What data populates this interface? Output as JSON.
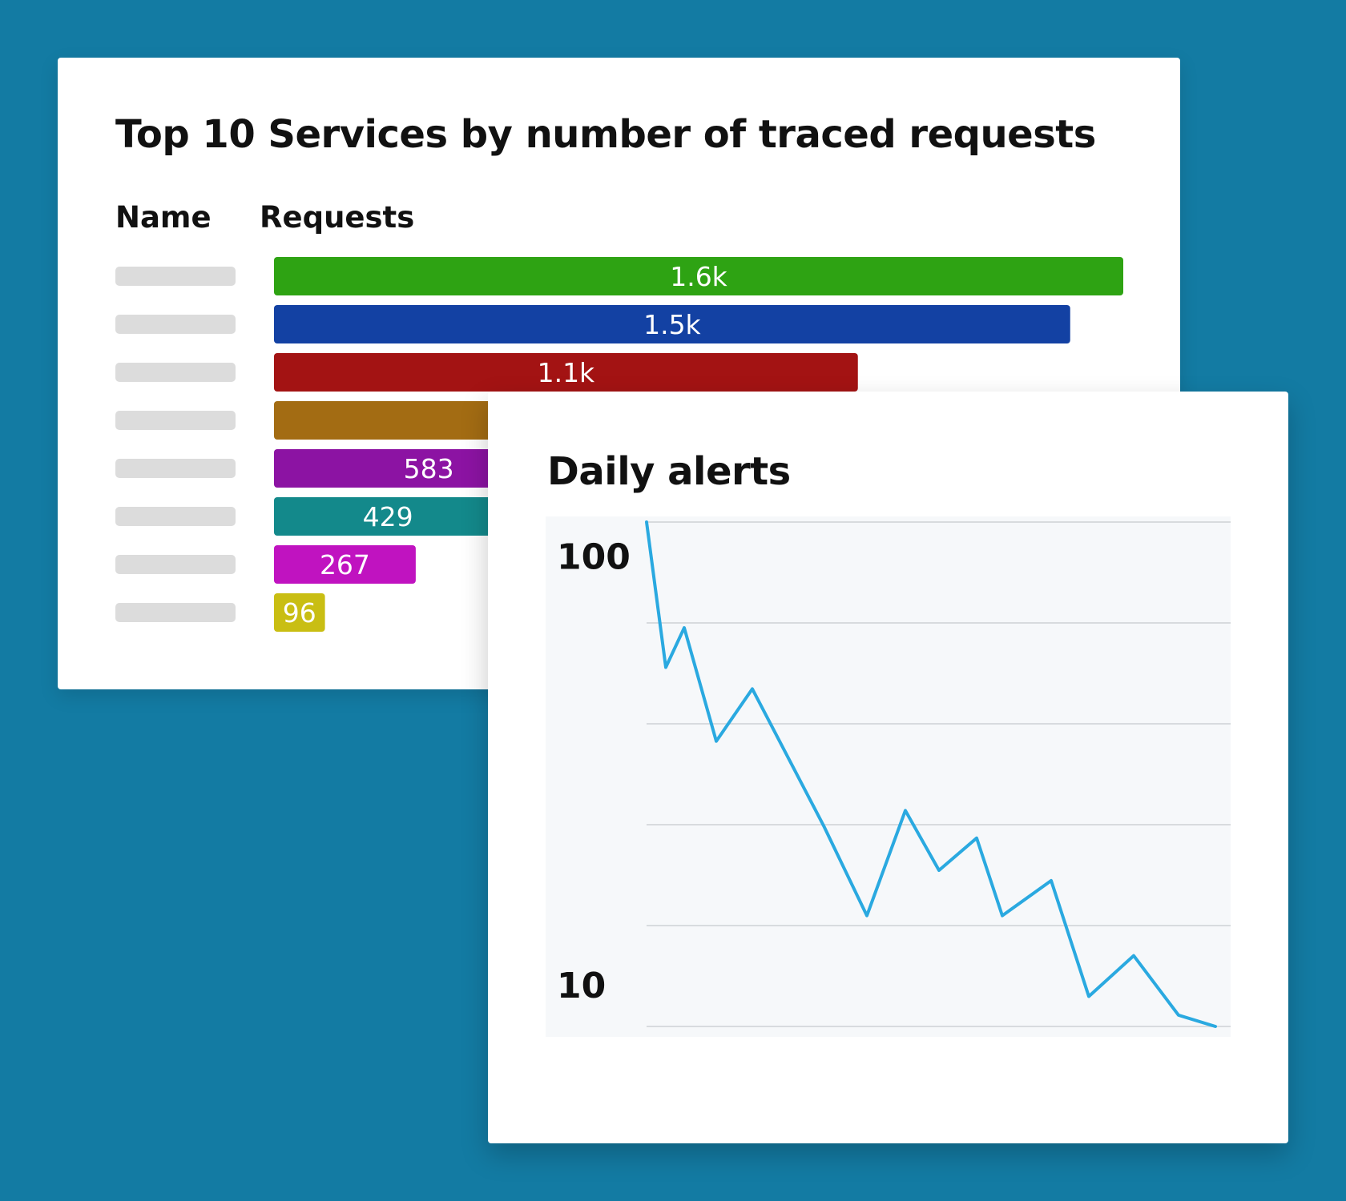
{
  "background_color": "#137ba3",
  "bar_chart": {
    "title": "Top 10 Services by number of traced requests",
    "columns": {
      "name": "Name",
      "requests": "Requests"
    }
  },
  "line_chart": {
    "title": "Daily alerts"
  },
  "chart_data": [
    {
      "type": "bar",
      "orientation": "horizontal",
      "title": "Top 10 Services by number of traced requests",
      "categories": [
        "",
        "",
        "",
        "",
        "",
        "",
        "",
        ""
      ],
      "values": [
        1600,
        1500,
        1100,
        1000,
        583,
        429,
        267,
        96
      ],
      "labels": [
        "1.6k",
        "1.5k",
        "1.1k",
        "",
        "583",
        "429",
        "267",
        "96"
      ],
      "colors": [
        "#2ea313",
        "#1341a3",
        "#a31313",
        "#a36c13",
        "#8c13a3",
        "#13898b",
        "#c013c0",
        "#c9be13"
      ],
      "xlim": [
        0,
        1600
      ],
      "grid": false
    },
    {
      "type": "line",
      "title": "Daily alerts",
      "yscale": "log",
      "ylim": [
        8,
        120
      ],
      "yticks": [
        100,
        10
      ],
      "ytick_labels": [
        "100",
        "10"
      ],
      "x": [
        0,
        1,
        2,
        3,
        4,
        5,
        6,
        7,
        8,
        9,
        10,
        11,
        12,
        13,
        14,
        15
      ],
      "values": [
        120,
        55,
        68,
        37,
        49,
        23.5,
        14.5,
        25.5,
        18.5,
        22,
        14.5,
        17.5,
        9.4,
        11.7,
        8.5,
        0
      ],
      "color": "#2aa9e0",
      "grid": true
    }
  ]
}
